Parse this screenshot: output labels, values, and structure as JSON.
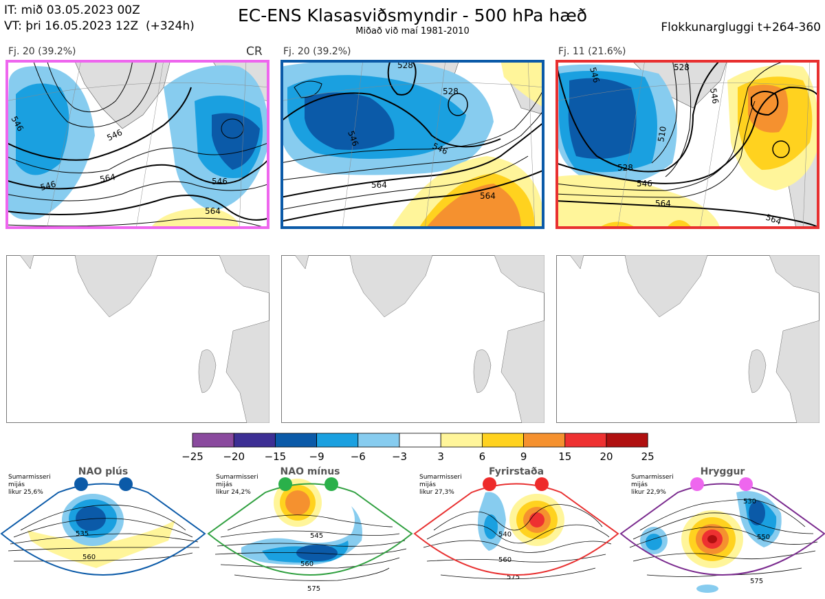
{
  "header": {
    "init_time": "IT: mið 03.05.2023 00Z",
    "valid_time": "VT: þri 16.05.2023 12Z  (+324h)",
    "title": "EC-ENS Klasasviðsmyndir - 500 hPa hæð",
    "subtitle": "Miðað við maí 1981-2010",
    "cluster_window": "Flokkunargluggi t+264-360"
  },
  "clusters": [
    {
      "label": "Fj. 20 (39.2%)",
      "border_color": "#ee66ee",
      "contours": [
        "546",
        "546",
        "564",
        "564",
        "546",
        "546"
      ],
      "extra_label": "CR"
    },
    {
      "label": "Fj. 20 (39.2%)",
      "border_color": "#0b5aa8",
      "contours": [
        "528",
        "546",
        "546",
        "564",
        "564",
        "528"
      ],
      "extra_label": ""
    },
    {
      "label": "Fj. 11 (21.6%)",
      "border_color": "#e83030",
      "contours": [
        "546",
        "528",
        "510",
        "528",
        "546",
        "564",
        "564",
        "546"
      ],
      "extra_label": ""
    }
  ],
  "colorbar": {
    "ticks": [
      "−25",
      "−20",
      "−15",
      "−9",
      "−6",
      "−3",
      "3",
      "6",
      "9",
      "15",
      "20",
      "25"
    ],
    "colors": [
      "#8a4a9e",
      "#3d2f94",
      "#0b5aa8",
      "#1aa0e0",
      "#87ccef",
      "#ffffff",
      "#fff59a",
      "#ffd21f",
      "#f5912f",
      "#ee3131",
      "#b01010"
    ]
  },
  "regimes": [
    {
      "name": "NAO plús",
      "note": [
        "Sumarmisseri",
        "mijás",
        "likur 25,6%"
      ],
      "outline_color": "#0b5aa8",
      "dot_color": "#0b5aa8",
      "contours": [
        "535",
        "560"
      ]
    },
    {
      "name": "NAO mínus",
      "note": [
        "Sumarmisseri",
        "mijás",
        "likur 24,2%"
      ],
      "outline_color": "#30a040",
      "dot_color": "#2ab04a",
      "contours": [
        "545",
        "560",
        "575"
      ]
    },
    {
      "name": "Fyrirstaða",
      "note": [
        "Sumarmisseri",
        "mijás",
        "likur 27,3%"
      ],
      "outline_color": "#e83030",
      "dot_color": "#ee2b2b",
      "contours": [
        "540",
        "560",
        "575"
      ]
    },
    {
      "name": "Hryggur",
      "note": [
        "Sumarmisseri",
        "mijás",
        "likur 22,9%"
      ],
      "outline_color": "#7a2a8e",
      "dot_color": "#ee66ee",
      "contours": [
        "530",
        "550",
        "575"
      ]
    }
  ]
}
